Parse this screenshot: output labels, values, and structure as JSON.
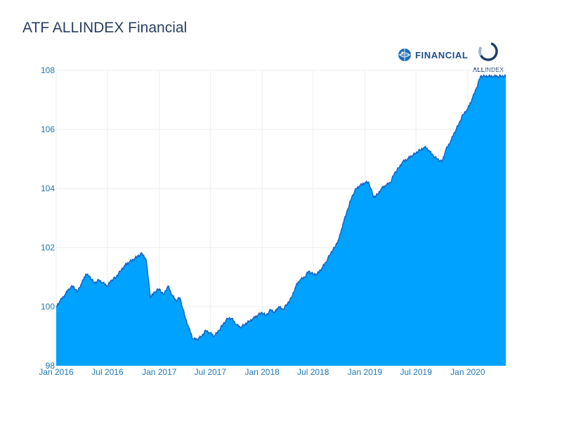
{
  "branding": {
    "financial_text": "FINANCIAL",
    "allindex_bold": "ALL",
    "allindex_rest": "INDEX"
  },
  "chart_data": {
    "type": "area",
    "title": "ATF ALLINDEX Financial",
    "xlabel": "",
    "ylabel": "",
    "ylim": [
      98,
      108
    ],
    "yticks": [
      98,
      100,
      102,
      104,
      106,
      108
    ],
    "xticks": [
      "Jan 2016",
      "Jul 2016",
      "Jan 2017",
      "Jul 2017",
      "Jan 2018",
      "Jul 2018",
      "Jan 2019",
      "Jul 2019",
      "Jan 2020"
    ],
    "grid": true,
    "fill_color": "#00a2ff",
    "line_color": "#1565c0",
    "series": [
      {
        "x": [
          "2016-01-01",
          "2016-01-15",
          "2016-02-01",
          "2016-02-15",
          "2016-03-01",
          "2016-03-15",
          "2016-04-01",
          "2016-04-15",
          "2016-05-01",
          "2016-05-15",
          "2016-06-01",
          "2016-06-15",
          "2016-07-01",
          "2016-07-15",
          "2016-08-01",
          "2016-08-15",
          "2016-09-01",
          "2016-09-15",
          "2016-10-01",
          "2016-10-15",
          "2016-11-01",
          "2016-11-15",
          "2016-12-01",
          "2016-12-15",
          "2017-01-01",
          "2017-01-15",
          "2017-02-01",
          "2017-02-15",
          "2017-03-01",
          "2017-03-15",
          "2017-04-01",
          "2017-04-15",
          "2017-05-01",
          "2017-05-15",
          "2017-06-01",
          "2017-06-15",
          "2017-07-01",
          "2017-07-15",
          "2017-08-01",
          "2017-08-15",
          "2017-09-01",
          "2017-09-15",
          "2017-10-01",
          "2017-10-15",
          "2017-11-01",
          "2017-11-15",
          "2017-12-01",
          "2017-12-15",
          "2018-01-01",
          "2018-01-15",
          "2018-02-01",
          "2018-02-15",
          "2018-03-01",
          "2018-03-15",
          "2018-04-01",
          "2018-04-15",
          "2018-05-01",
          "2018-05-15",
          "2018-06-01",
          "2018-06-15",
          "2018-07-01",
          "2018-07-15",
          "2018-08-01",
          "2018-08-15",
          "2018-09-01",
          "2018-09-15",
          "2018-10-01",
          "2018-10-15",
          "2018-11-01",
          "2018-11-15",
          "2018-12-01",
          "2018-12-15",
          "2019-01-01",
          "2019-01-15",
          "2019-02-01",
          "2019-02-15",
          "2019-03-01",
          "2019-03-15",
          "2019-04-01",
          "2019-04-15",
          "2019-05-01",
          "2019-05-15",
          "2019-06-01",
          "2019-06-15",
          "2019-07-01",
          "2019-07-15",
          "2019-08-01",
          "2019-08-15",
          "2019-09-01",
          "2019-09-15",
          "2019-10-01",
          "2019-10-15",
          "2019-11-01",
          "2019-11-15",
          "2019-12-01",
          "2019-12-15",
          "2020-01-01",
          "2020-01-15",
          "2020-02-01",
          "2020-02-15",
          "2020-03-01",
          "2020-03-15",
          "2020-04-01",
          "2020-04-15",
          "2020-05-01",
          "2020-05-15"
        ],
        "y": [
          100.0,
          100.2,
          100.4,
          100.6,
          100.7,
          100.5,
          100.8,
          101.1,
          101.0,
          100.8,
          100.9,
          100.8,
          100.7,
          100.9,
          101.0,
          101.2,
          101.4,
          101.5,
          101.6,
          101.7,
          101.8,
          101.6,
          100.3,
          100.5,
          100.6,
          100.4,
          100.7,
          100.4,
          100.2,
          100.3,
          99.7,
          99.3,
          98.9,
          98.9,
          99.0,
          99.2,
          99.1,
          99.0,
          99.2,
          99.4,
          99.6,
          99.6,
          99.4,
          99.3,
          99.4,
          99.5,
          99.6,
          99.7,
          99.8,
          99.7,
          99.9,
          99.8,
          100.0,
          99.9,
          100.1,
          100.3,
          100.7,
          100.9,
          101.0,
          101.2,
          101.1,
          101.1,
          101.3,
          101.5,
          101.8,
          102.0,
          102.3,
          102.8,
          103.3,
          103.7,
          104.0,
          104.1,
          104.2,
          104.2,
          103.7,
          103.8,
          104.0,
          104.1,
          104.2,
          104.5,
          104.7,
          104.9,
          105.0,
          105.1,
          105.2,
          105.3,
          105.4,
          105.3,
          105.1,
          105.0,
          104.9,
          105.3,
          105.6,
          105.9,
          106.2,
          106.5,
          106.7,
          107.0,
          107.4,
          107.8,
          107.8,
          107.8,
          107.8,
          107.8,
          107.8,
          107.8
        ]
      }
    ]
  }
}
